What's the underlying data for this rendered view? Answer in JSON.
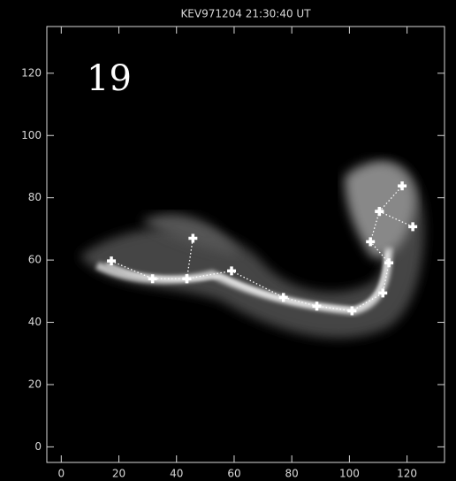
{
  "chart_data": {
    "type": "scatter",
    "title": "KEV971204 21:30:40 UT",
    "annotation": "19",
    "xlim": [
      -5,
      133
    ],
    "ylim": [
      -5,
      135
    ],
    "xticks": [
      0,
      20,
      40,
      60,
      80,
      100,
      120
    ],
    "yticks": [
      0,
      20,
      40,
      60,
      80,
      100,
      120
    ],
    "series": [
      {
        "color": "#ffffff",
        "x": [
          17.4,
          31.7,
          43.6,
          59.1,
          77.1,
          88.7,
          100.9,
          111.6,
          113.7,
          107.3,
          110.4,
          118.3
        ],
        "y": [
          59.7,
          54,
          54,
          56.5,
          48,
          45.2,
          43.7,
          49.4,
          59.1,
          65.9,
          75.6,
          83.8
        ]
      },
      {
        "color": "#ffffff",
        "x": [
          43.6,
          45.7
        ],
        "y": [
          54,
          67
        ]
      },
      {
        "color": "#ffffff",
        "x": [
          110.4,
          122
        ],
        "y": [
          75.6,
          70.7
        ]
      }
    ]
  }
}
